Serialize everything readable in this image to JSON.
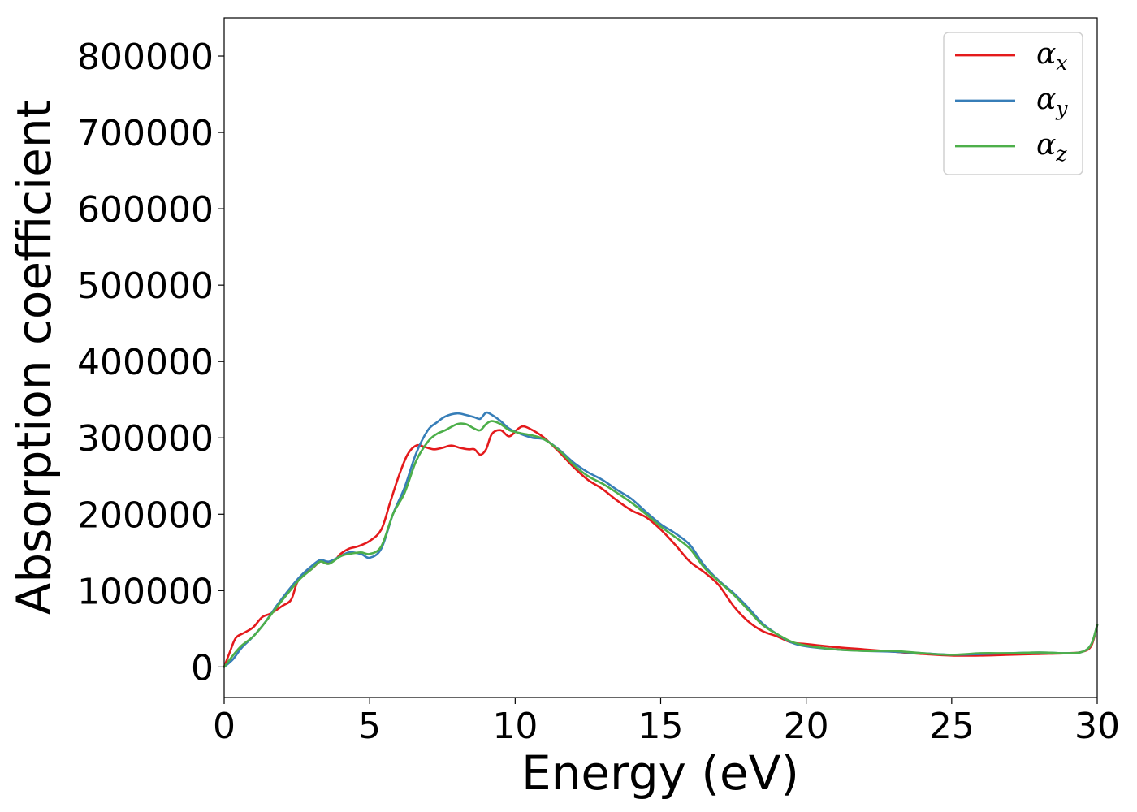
{
  "chart_data": {
    "type": "line",
    "xlabel": "Energy (eV)",
    "ylabel": "Absorption coefficient",
    "xlim": [
      0,
      30
    ],
    "ylim": [
      -40000,
      850000
    ],
    "xticks": [
      0,
      5,
      10,
      15,
      20,
      25,
      30
    ],
    "yticks": [
      0,
      100000,
      200000,
      300000,
      400000,
      500000,
      600000,
      700000,
      800000
    ],
    "grid": false,
    "legend": "top-right",
    "series": [
      {
        "name": "α",
        "sub": "x",
        "color": "#e41a1c",
        "x": [
          0,
          0.2,
          0.4,
          0.7,
          1.0,
          1.3,
          1.6,
          2.0,
          2.3,
          2.5,
          2.7,
          3.0,
          3.3,
          3.5,
          3.8,
          4.0,
          4.3,
          4.6,
          5.0,
          5.4,
          5.7,
          6.0,
          6.3,
          6.6,
          6.9,
          7.2,
          7.5,
          7.8,
          8.1,
          8.4,
          8.6,
          8.8,
          9.0,
          9.2,
          9.5,
          9.8,
          10.1,
          10.3,
          10.6,
          11.0,
          11.5,
          12.0,
          12.5,
          13.0,
          13.5,
          14.0,
          14.5,
          15.0,
          15.5,
          16.0,
          16.5,
          17.0,
          17.5,
          18.0,
          18.5,
          19.0,
          19.5,
          20.0,
          21.0,
          22.0,
          23.0,
          24.0,
          25.0,
          26.0,
          27.0,
          28.0,
          29.0,
          29.5,
          29.8,
          30.0
        ],
        "y": [
          0,
          20000,
          38000,
          45000,
          52000,
          65000,
          70000,
          80000,
          88000,
          110000,
          120000,
          128000,
          138000,
          136000,
          140000,
          148000,
          155000,
          158000,
          165000,
          180000,
          215000,
          250000,
          278000,
          290000,
          288000,
          285000,
          287000,
          290000,
          287000,
          285000,
          285000,
          278000,
          285000,
          305000,
          310000,
          302000,
          312000,
          315000,
          310000,
          300000,
          282000,
          262000,
          245000,
          233000,
          218000,
          205000,
          196000,
          180000,
          160000,
          138000,
          124000,
          107000,
          80000,
          60000,
          47000,
          40000,
          32000,
          30000,
          26000,
          23000,
          20000,
          17000,
          15000,
          15000,
          16000,
          17000,
          18000,
          20000,
          28000,
          55000
        ]
      },
      {
        "name": "α",
        "sub": "y",
        "color": "#377eb8",
        "x": [
          0,
          0.3,
          0.6,
          1.0,
          1.4,
          1.8,
          2.2,
          2.6,
          3.0,
          3.3,
          3.6,
          4.0,
          4.3,
          4.7,
          5.0,
          5.4,
          5.8,
          6.2,
          6.6,
          7.0,
          7.3,
          7.6,
          8.0,
          8.3,
          8.6,
          8.8,
          9.0,
          9.2,
          9.5,
          9.8,
          10.2,
          10.6,
          11.0,
          11.5,
          12.0,
          12.5,
          13.0,
          13.5,
          14.0,
          14.5,
          15.0,
          15.5,
          16.0,
          16.5,
          17.0,
          17.5,
          18.0,
          18.5,
          19.0,
          19.5,
          20.0,
          21.0,
          22.0,
          23.0,
          24.0,
          25.0,
          26.0,
          27.0,
          28.0,
          29.0,
          29.5,
          29.8,
          30.0
        ],
        "y": [
          0,
          10000,
          25000,
          40000,
          58000,
          80000,
          100000,
          118000,
          132000,
          140000,
          138000,
          145000,
          150000,
          148000,
          143000,
          155000,
          200000,
          235000,
          280000,
          310000,
          320000,
          328000,
          332000,
          330000,
          327000,
          325000,
          333000,
          330000,
          322000,
          312000,
          305000,
          300000,
          298000,
          285000,
          268000,
          255000,
          245000,
          232000,
          220000,
          203000,
          187000,
          175000,
          160000,
          133000,
          113000,
          97000,
          78000,
          57000,
          43000,
          32000,
          27000,
          23000,
          21000,
          20000,
          18000,
          16000,
          17000,
          18000,
          19000,
          18000,
          20000,
          30000,
          55000
        ]
      },
      {
        "name": "α",
        "sub": "z",
        "color": "#4daf4a",
        "x": [
          0,
          0.3,
          0.6,
          1.0,
          1.4,
          1.8,
          2.2,
          2.6,
          3.0,
          3.3,
          3.6,
          4.0,
          4.3,
          4.7,
          5.0,
          5.4,
          5.8,
          6.2,
          6.6,
          7.0,
          7.3,
          7.6,
          8.0,
          8.3,
          8.6,
          8.8,
          9.0,
          9.2,
          9.5,
          9.8,
          10.2,
          10.6,
          11.0,
          11.5,
          12.0,
          12.5,
          13.0,
          13.5,
          14.0,
          14.5,
          15.0,
          15.5,
          16.0,
          16.5,
          17.0,
          17.5,
          18.0,
          18.5,
          19.0,
          19.5,
          20.0,
          21.0,
          22.0,
          23.0,
          24.0,
          25.0,
          26.0,
          27.0,
          28.0,
          29.0,
          29.5,
          29.8,
          30.0
        ],
        "y": [
          0,
          15000,
          28000,
          40000,
          58000,
          78000,
          97000,
          115000,
          128000,
          138000,
          135000,
          145000,
          148000,
          150000,
          148000,
          158000,
          200000,
          228000,
          270000,
          295000,
          305000,
          310000,
          318000,
          318000,
          312000,
          310000,
          318000,
          322000,
          318000,
          310000,
          306000,
          303000,
          298000,
          284000,
          265000,
          250000,
          240000,
          228000,
          215000,
          200000,
          184000,
          170000,
          155000,
          130000,
          112000,
          95000,
          75000,
          55000,
          43000,
          33000,
          28000,
          23000,
          21000,
          21000,
          18000,
          16000,
          18000,
          18000,
          19000,
          18000,
          20000,
          30000,
          55000
        ]
      }
    ]
  }
}
